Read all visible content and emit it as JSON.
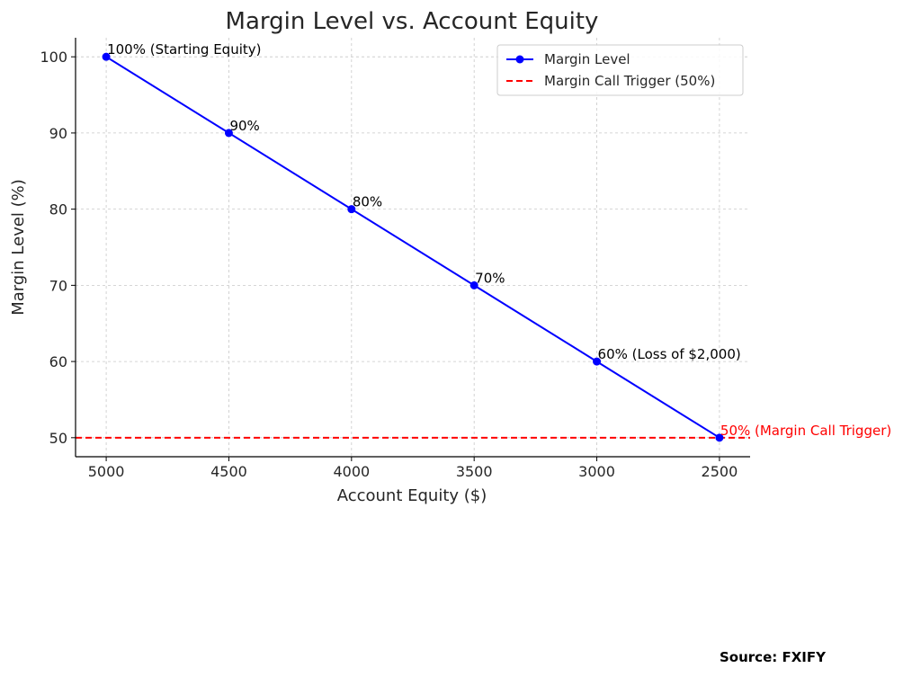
{
  "chart_data": {
    "type": "line",
    "title": "Margin Level vs. Account Equity",
    "xlabel": "Account Equity ($)",
    "ylabel": "Margin Level (%)",
    "x": [
      5000,
      4500,
      4000,
      3500,
      3000,
      2500
    ],
    "xlim": [
      5125,
      2375
    ],
    "ylim": [
      47.5,
      102.5
    ],
    "x_ticks": [
      5000,
      4500,
      4000,
      3500,
      3000,
      2500
    ],
    "y_ticks": [
      50,
      60,
      70,
      80,
      90,
      100
    ],
    "x_tick_labels": [
      "5000",
      "4500",
      "4000",
      "3500",
      "3000",
      "2500"
    ],
    "y_tick_labels": [
      "50",
      "60",
      "70",
      "80",
      "90",
      "100"
    ],
    "grid": true,
    "series": [
      {
        "name": "Margin Level",
        "values": [
          100,
          90,
          80,
          70,
          60,
          50
        ],
        "color": "#0000ff",
        "marker": "circle"
      }
    ],
    "reference_lines": [
      {
        "name": "Margin Call Trigger (50%)",
        "y": 50,
        "color": "#ff0000",
        "style": "dashed"
      }
    ],
    "annotations": [
      {
        "text": "100% (Starting Equity)",
        "x": 5000,
        "y": 100,
        "color": "#000000"
      },
      {
        "text": "90%",
        "x": 4500,
        "y": 90,
        "color": "#000000"
      },
      {
        "text": "80%",
        "x": 4000,
        "y": 80,
        "color": "#000000"
      },
      {
        "text": "70%",
        "x": 3500,
        "y": 70,
        "color": "#000000"
      },
      {
        "text": "60% (Loss of $2,000)",
        "x": 3000,
        "y": 60,
        "color": "#000000"
      },
      {
        "text": "50% (Margin Call Trigger)",
        "x": 2500,
        "y": 50,
        "color": "#ff0000"
      }
    ],
    "legend": {
      "placement": "top-right",
      "entries": [
        "Margin Level",
        "Margin Call Trigger (50%)"
      ]
    }
  },
  "source": "Source: FXIFY"
}
